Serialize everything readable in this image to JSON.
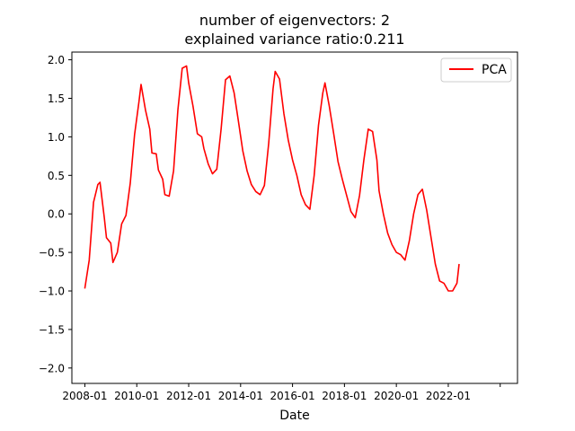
{
  "chart_data": {
    "type": "line",
    "title": "number of eigenvectors: 2",
    "subtitle": "explained variance ratio:0.211",
    "xlabel": "Date",
    "ylabel": "",
    "xlim": [
      "2007-07",
      "2024-09"
    ],
    "ylim": [
      -2.2,
      2.1
    ],
    "x_ticks": [
      "2008-01",
      "2010-01",
      "2012-01",
      "2014-01",
      "2016-01",
      "2018-01",
      "2020-01",
      "2022-01",
      ""
    ],
    "y_ticks": [
      2.0,
      1.5,
      1.0,
      0.5,
      0.0,
      -0.5,
      -1.0,
      -1.5,
      -2.0
    ],
    "y_tick_labels": [
      "2.0",
      "1.5",
      "1.0",
      "0.5",
      "0.0",
      "−0.5",
      "−1.0",
      "−1.5",
      "−2.0"
    ],
    "grid": false,
    "legend": {
      "position": "top-right"
    },
    "series": [
      {
        "name": "PCA",
        "color": "#ff0000",
        "points": [
          [
            "2008-01",
            -0.97
          ],
          [
            "2008-03",
            -0.6
          ],
          [
            "2008-05",
            0.15
          ],
          [
            "2008-07",
            0.38
          ],
          [
            "2008-08",
            0.41
          ],
          [
            "2008-10",
            -0.05
          ],
          [
            "2008-11",
            -0.31
          ],
          [
            "2009-01",
            -0.38
          ],
          [
            "2009-02",
            -0.63
          ],
          [
            "2009-04",
            -0.5
          ],
          [
            "2009-06",
            -0.13
          ],
          [
            "2009-08",
            -0.02
          ],
          [
            "2009-10",
            0.4
          ],
          [
            "2009-12",
            1.03
          ],
          [
            "2010-02",
            1.45
          ],
          [
            "2010-03",
            1.68
          ],
          [
            "2010-05",
            1.35
          ],
          [
            "2010-07",
            1.1
          ],
          [
            "2010-08",
            0.79
          ],
          [
            "2010-10",
            0.78
          ],
          [
            "2010-11",
            0.57
          ],
          [
            "2011-01",
            0.45
          ],
          [
            "2011-02",
            0.25
          ],
          [
            "2011-04",
            0.23
          ],
          [
            "2011-06",
            0.56
          ],
          [
            "2011-08",
            1.35
          ],
          [
            "2011-10",
            1.89
          ],
          [
            "2011-12",
            1.92
          ],
          [
            "2012-01",
            1.7
          ],
          [
            "2012-03",
            1.4
          ],
          [
            "2012-05",
            1.04
          ],
          [
            "2012-07",
            1.0
          ],
          [
            "2012-08",
            0.85
          ],
          [
            "2012-10",
            0.65
          ],
          [
            "2012-12",
            0.52
          ],
          [
            "2013-02",
            0.58
          ],
          [
            "2013-04",
            1.1
          ],
          [
            "2013-06",
            1.74
          ],
          [
            "2013-08",
            1.79
          ],
          [
            "2013-10",
            1.57
          ],
          [
            "2013-12",
            1.2
          ],
          [
            "2014-02",
            0.82
          ],
          [
            "2014-04",
            0.56
          ],
          [
            "2014-06",
            0.38
          ],
          [
            "2014-08",
            0.29
          ],
          [
            "2014-10",
            0.25
          ],
          [
            "2014-12",
            0.37
          ],
          [
            "2015-02",
            0.92
          ],
          [
            "2015-04",
            1.62
          ],
          [
            "2015-05",
            1.85
          ],
          [
            "2015-07",
            1.75
          ],
          [
            "2015-09",
            1.3
          ],
          [
            "2015-11",
            0.96
          ],
          [
            "2016-01",
            0.7
          ],
          [
            "2016-03",
            0.5
          ],
          [
            "2016-05",
            0.25
          ],
          [
            "2016-07",
            0.12
          ],
          [
            "2016-09",
            0.06
          ],
          [
            "2016-11",
            0.5
          ],
          [
            "2017-01",
            1.15
          ],
          [
            "2017-03",
            1.57
          ],
          [
            "2017-04",
            1.7
          ],
          [
            "2017-06",
            1.4
          ],
          [
            "2017-08",
            1.05
          ],
          [
            "2017-10",
            0.68
          ],
          [
            "2017-12",
            0.45
          ],
          [
            "2018-02",
            0.24
          ],
          [
            "2018-04",
            0.03
          ],
          [
            "2018-06",
            -0.05
          ],
          [
            "2018-08",
            0.24
          ],
          [
            "2018-10",
            0.7
          ],
          [
            "2018-12",
            1.1
          ],
          [
            "2019-02",
            1.07
          ],
          [
            "2019-04",
            0.7
          ],
          [
            "2019-05",
            0.3
          ],
          [
            "2019-07",
            0.0
          ],
          [
            "2019-09",
            -0.25
          ],
          [
            "2019-11",
            -0.4
          ],
          [
            "2020-01",
            -0.5
          ],
          [
            "2020-03",
            -0.53
          ],
          [
            "2020-05",
            -0.6
          ],
          [
            "2020-07",
            -0.35
          ],
          [
            "2020-09",
            0.0
          ],
          [
            "2020-11",
            0.25
          ],
          [
            "2021-01",
            0.32
          ],
          [
            "2021-03",
            0.05
          ],
          [
            "2021-05",
            -0.3
          ],
          [
            "2021-07",
            -0.65
          ],
          [
            "2021-09",
            -0.87
          ],
          [
            "2021-11",
            -0.9
          ],
          [
            "2022-01",
            -1.0
          ],
          [
            "2022-03",
            -1.0
          ],
          [
            "2022-05",
            -0.9
          ],
          [
            "2022-06",
            -0.65
          ]
        ]
      }
    ]
  }
}
